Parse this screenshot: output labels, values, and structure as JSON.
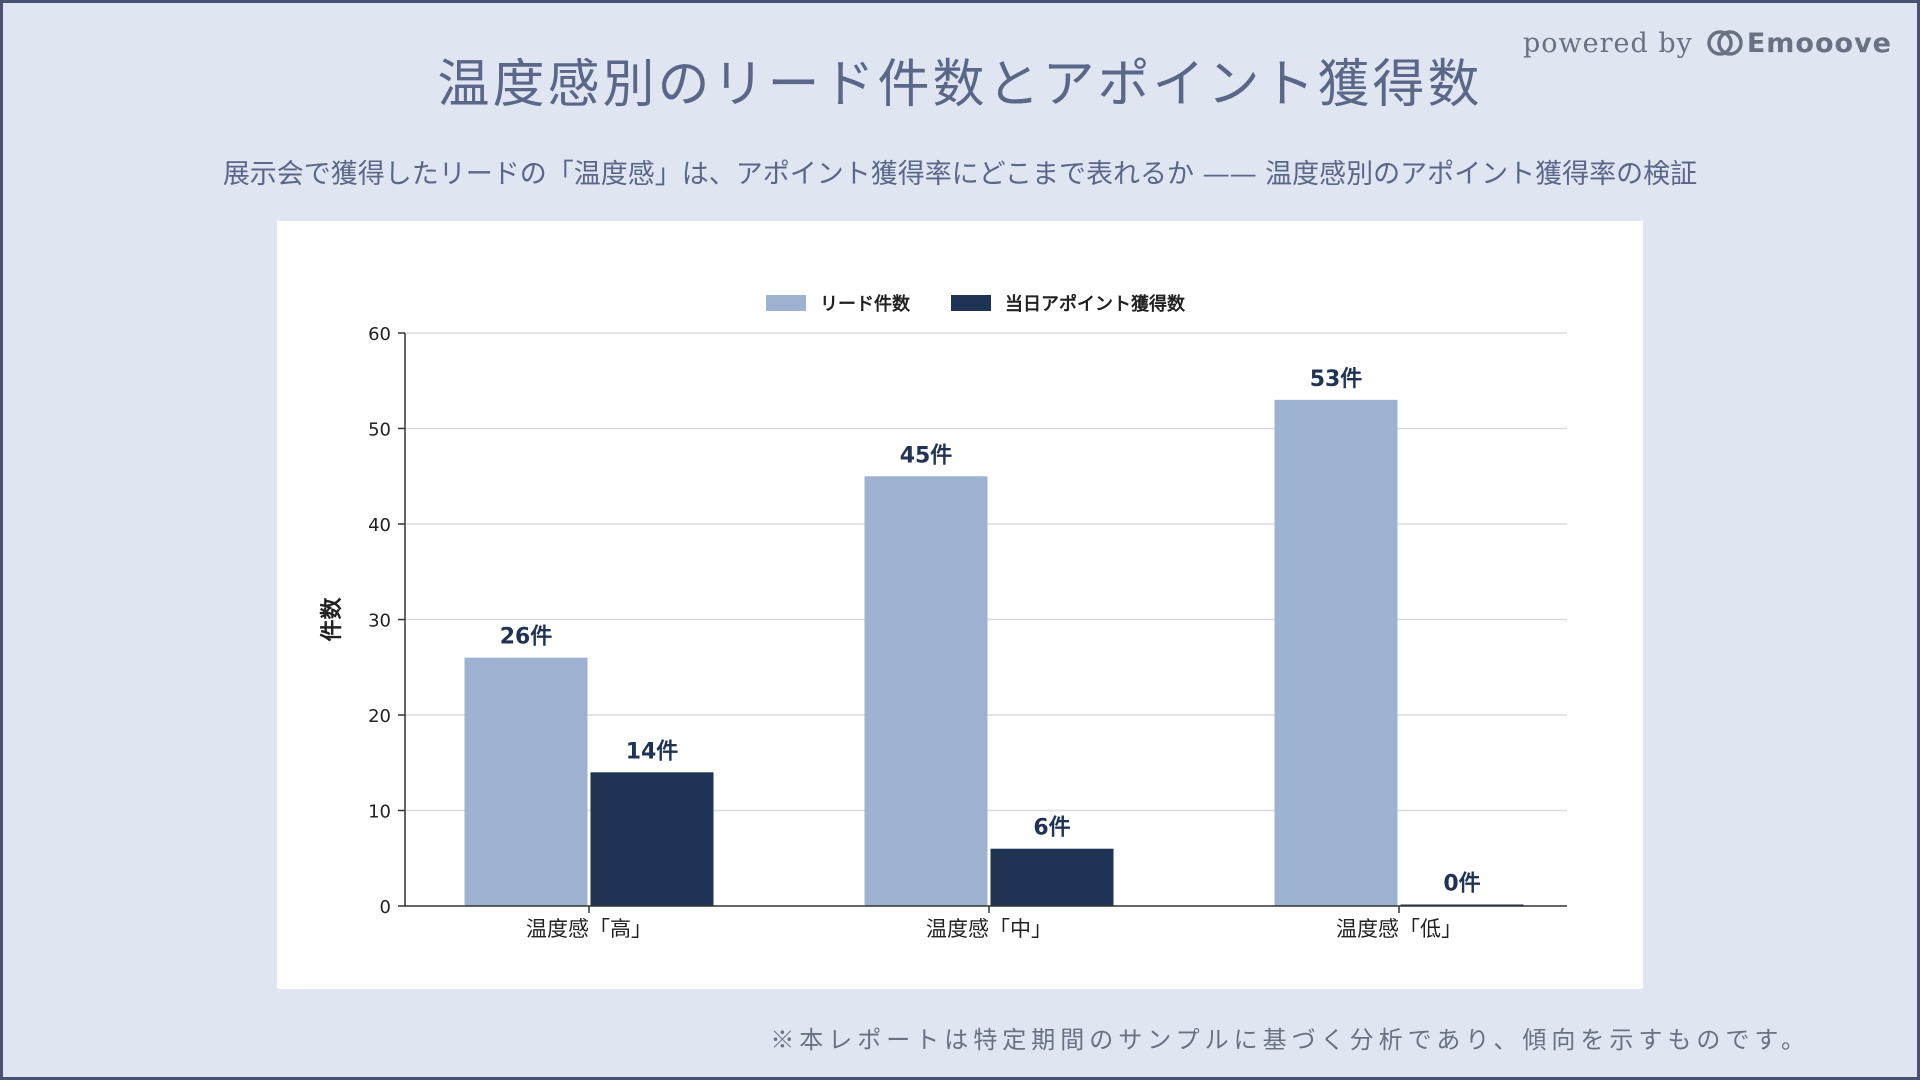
{
  "header": {
    "title": "温度感別のリード件数とアポイント獲得数",
    "subtitle": "展示会で獲得したリードの「温度感」は、アポイント獲得率にどこまで表れるか —— 温度感別のアポイント獲得率の検証",
    "powered_by": "powered by",
    "brand": "Emooove"
  },
  "footnote": "※本レポートは特定期間のサンプルに基づく分析であり、傾向を示すものです。",
  "colors": {
    "background": "#dfe6f2",
    "series_leads": "#9db1d1",
    "series_appt": "#1f3354",
    "label_text": "#1f3354"
  },
  "chart_data": {
    "type": "bar",
    "categories": [
      "温度感「高」",
      "温度感「中」",
      "温度感「低」"
    ],
    "series": [
      {
        "name": "リード件数",
        "values": [
          26,
          45,
          53
        ],
        "labels": [
          "26件",
          "45件",
          "53件"
        ],
        "color": "#9db1d1"
      },
      {
        "name": "当日アポイント獲得数",
        "values": [
          14,
          6,
          0
        ],
        "labels": [
          "14件",
          "6件",
          "0件"
        ],
        "color": "#1f3354"
      }
    ],
    "ylabel": "件数",
    "ylim": [
      0,
      60
    ],
    "yticks": [
      0,
      10,
      20,
      30,
      40,
      50,
      60
    ],
    "grid": true,
    "legend": "top-center"
  }
}
